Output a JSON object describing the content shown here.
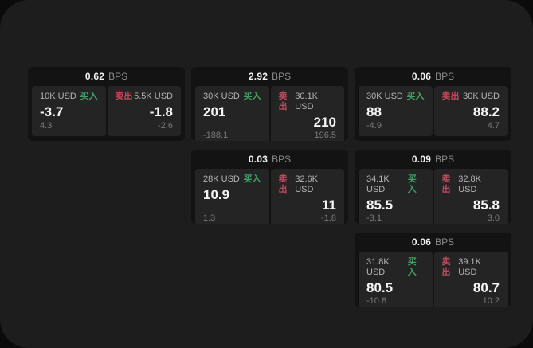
{
  "colors": {
    "buy": "#41a066",
    "sell": "#bf4a5f",
    "card_bg": "#131313",
    "cell_bg": "#242424",
    "panel_bg": "#1d1d1d",
    "page_bg": "#0b0b0b"
  },
  "labels": {
    "bps": "BPS",
    "buy": "买入",
    "sell": "卖出"
  },
  "cards": [
    {
      "row": 1,
      "col": 1,
      "bps": "0.62",
      "buy": {
        "notional": "10K USD",
        "price": "-3.7",
        "delta": "4.3"
      },
      "sell": {
        "notional": "5.5K USD",
        "price": "-1.8",
        "delta": "-2.6"
      }
    },
    {
      "row": 1,
      "col": 2,
      "bps": "2.92",
      "buy": {
        "notional": "30K USD",
        "price": "201",
        "delta": "-188.1"
      },
      "sell": {
        "notional": "30.1K USD",
        "price": "210",
        "delta": "196.5"
      }
    },
    {
      "row": 1,
      "col": 3,
      "bps": "0.06",
      "buy": {
        "notional": "30K USD",
        "price": "88",
        "delta": "-4.9"
      },
      "sell": {
        "notional": "30K USD",
        "price": "88.2",
        "delta": "4.7"
      }
    },
    {
      "row": 2,
      "col": 2,
      "bps": "0.03",
      "buy": {
        "notional": "28K USD",
        "price": "10.9",
        "delta": "1.3"
      },
      "sell": {
        "notional": "32.6K USD",
        "price": "11",
        "delta": "-1.8"
      }
    },
    {
      "row": 2,
      "col": 3,
      "bps": "0.09",
      "buy": {
        "notional": "34.1K USD",
        "price": "85.5",
        "delta": "-3.1"
      },
      "sell": {
        "notional": "32.8K USD",
        "price": "85.8",
        "delta": "3.0"
      }
    },
    {
      "row": 3,
      "col": 3,
      "bps": "0.06",
      "buy": {
        "notional": "31.8K USD",
        "price": "80.5",
        "delta": "-10.8"
      },
      "sell": {
        "notional": "39.1K USD",
        "price": "80.7",
        "delta": "10.2"
      }
    }
  ]
}
